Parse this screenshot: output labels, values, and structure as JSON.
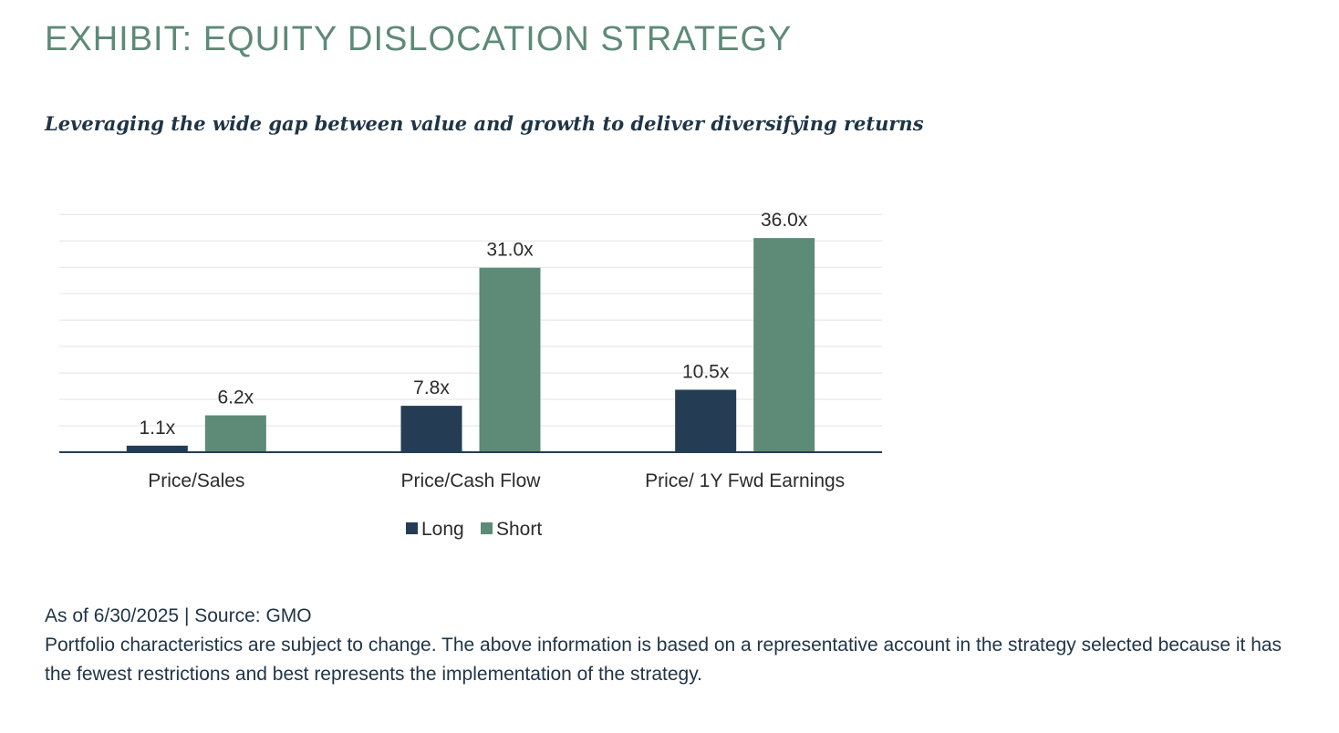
{
  "header": {
    "title": "EXHIBIT: EQUITY DISLOCATION STRATEGY",
    "subtitle": "Leveraging the wide gap between value and growth to deliver diversifying returns"
  },
  "colors": {
    "title": "#5e8a78",
    "long": "#243d55",
    "short": "#5e8a78",
    "grid": "#e3e3e3",
    "axis": "#243d55"
  },
  "chart_data": {
    "type": "bar",
    "title": "",
    "xlabel": "",
    "ylabel": "",
    "categories": [
      "Price/Sales",
      "Price/Cash Flow",
      "Price/ 1Y Fwd Earnings"
    ],
    "series": [
      {
        "name": "Long",
        "values": [
          1.1,
          7.8,
          10.5
        ],
        "labels": [
          "1.1x",
          "7.8x",
          "10.5x"
        ],
        "color": "#243d55"
      },
      {
        "name": "Short",
        "values": [
          6.2,
          31.0,
          36.0
        ],
        "labels": [
          "6.2x",
          "31.0x",
          "36.0x"
        ],
        "color": "#5e8a78"
      }
    ],
    "ylim": [
      0,
      40
    ],
    "grid": true,
    "legend": "bottom-center"
  },
  "footer": {
    "source": "As of 6/30/2025 | Source: GMO",
    "disclaimer": "Portfolio characteristics are subject to change. The above information is based on a representative account in the strategy selected because it has the fewest restrictions and best represents the implementation of the strategy."
  }
}
